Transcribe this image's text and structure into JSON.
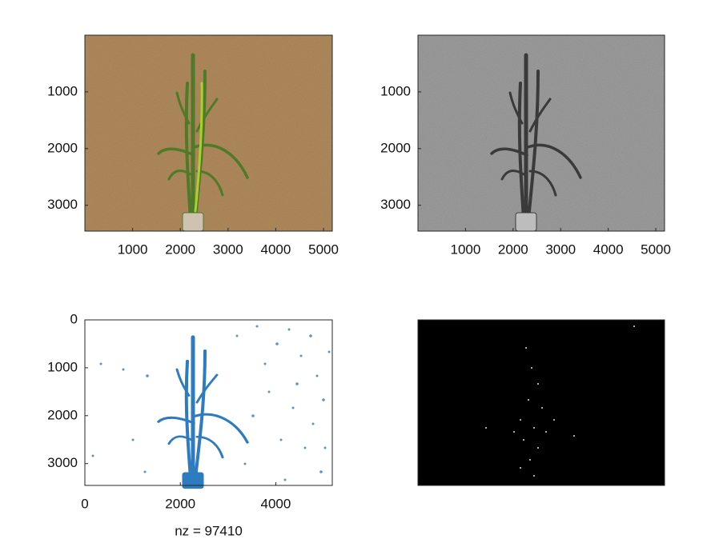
{
  "chart_data": [
    {
      "type": "image",
      "xlim": [
        0,
        5184
      ],
      "ylim": [
        0,
        3456
      ],
      "y_reversed": true,
      "xticks": [
        1000,
        2000,
        3000,
        4000,
        5000
      ],
      "yticks": [
        1000,
        2000,
        3000
      ]
    },
    {
      "type": "image",
      "xlim": [
        0,
        5184
      ],
      "ylim": [
        0,
        3456
      ],
      "y_reversed": true,
      "xticks": [
        1000,
        2000,
        3000,
        4000,
        5000
      ],
      "yticks": [
        1000,
        2000,
        3000
      ]
    },
    {
      "type": "spy",
      "xlim": [
        0,
        5184
      ],
      "ylim": [
        0,
        3456
      ],
      "y_reversed": true,
      "xticks": [
        0,
        2000,
        4000
      ],
      "yticks": [
        0,
        1000,
        2000,
        3000
      ],
      "xlabel": "nz = 97410",
      "color": "#2e7bbf"
    },
    {
      "type": "image"
    }
  ]
}
